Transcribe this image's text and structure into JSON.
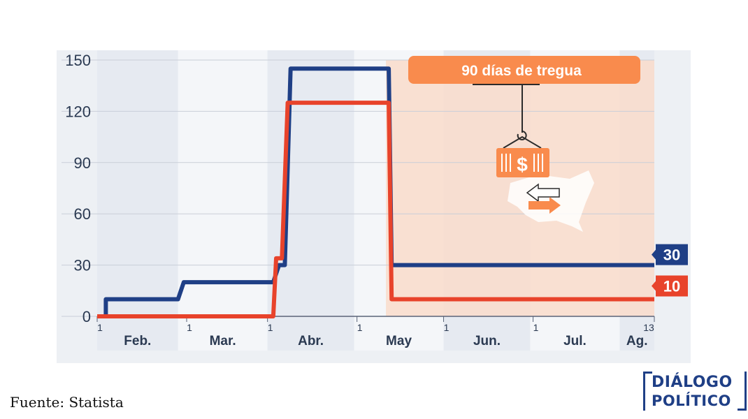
{
  "chart_data": {
    "type": "line",
    "ylim": [
      0,
      150
    ],
    "yticks": [
      0,
      30,
      60,
      90,
      120,
      150
    ],
    "xlim": [
      0,
      193
    ],
    "grid": true,
    "x_tick_labels": [
      {
        "day": 0,
        "label": "1"
      },
      {
        "day": 31,
        "label": "1"
      },
      {
        "day": 59,
        "label": "1"
      },
      {
        "day": 90,
        "label": "1"
      },
      {
        "day": 120,
        "label": "1"
      },
      {
        "day": 151,
        "label": "1"
      },
      {
        "day": 193,
        "label": "13"
      }
    ],
    "months": [
      {
        "label": "Feb.",
        "start": 0,
        "end": 28
      },
      {
        "label": "Mar.",
        "start": 28,
        "end": 59
      },
      {
        "label": "Abr.",
        "start": 59,
        "end": 89
      },
      {
        "label": "May",
        "start": 89,
        "end": 120
      },
      {
        "label": "Jun.",
        "start": 120,
        "end": 150
      },
      {
        "label": "Jul.",
        "start": 150,
        "end": 181
      },
      {
        "label": "Ag.",
        "start": 181,
        "end": 193
      }
    ],
    "series": [
      {
        "color": "#1f3f86",
        "end_label": "30",
        "points": [
          [
            0,
            0
          ],
          [
            3,
            0
          ],
          [
            3,
            10
          ],
          [
            28,
            10
          ],
          [
            30,
            20
          ],
          [
            61,
            20
          ],
          [
            63,
            30
          ],
          [
            65,
            30
          ],
          [
            67,
            145
          ],
          [
            101,
            145
          ],
          [
            102,
            30
          ],
          [
            193,
            30
          ]
        ]
      },
      {
        "color": "#e8432b",
        "end_label": "10",
        "points": [
          [
            0,
            0
          ],
          [
            61,
            0
          ],
          [
            62,
            34
          ],
          [
            64,
            34
          ],
          [
            66,
            125
          ],
          [
            101,
            125
          ],
          [
            102,
            10
          ],
          [
            193,
            10
          ]
        ]
      }
    ],
    "annotation": {
      "label": "90 días de tregua",
      "start": 101,
      "end": 193
    }
  },
  "source": "Fuente: Statista",
  "logo": {
    "line1": "DIÁLOGO",
    "line2": "POLÍTICO"
  },
  "colors": {
    "accent_orange": "#f98b4d",
    "shade_orange": "#f9dccb",
    "navy": "#1f3f86",
    "red": "#e8432b"
  }
}
